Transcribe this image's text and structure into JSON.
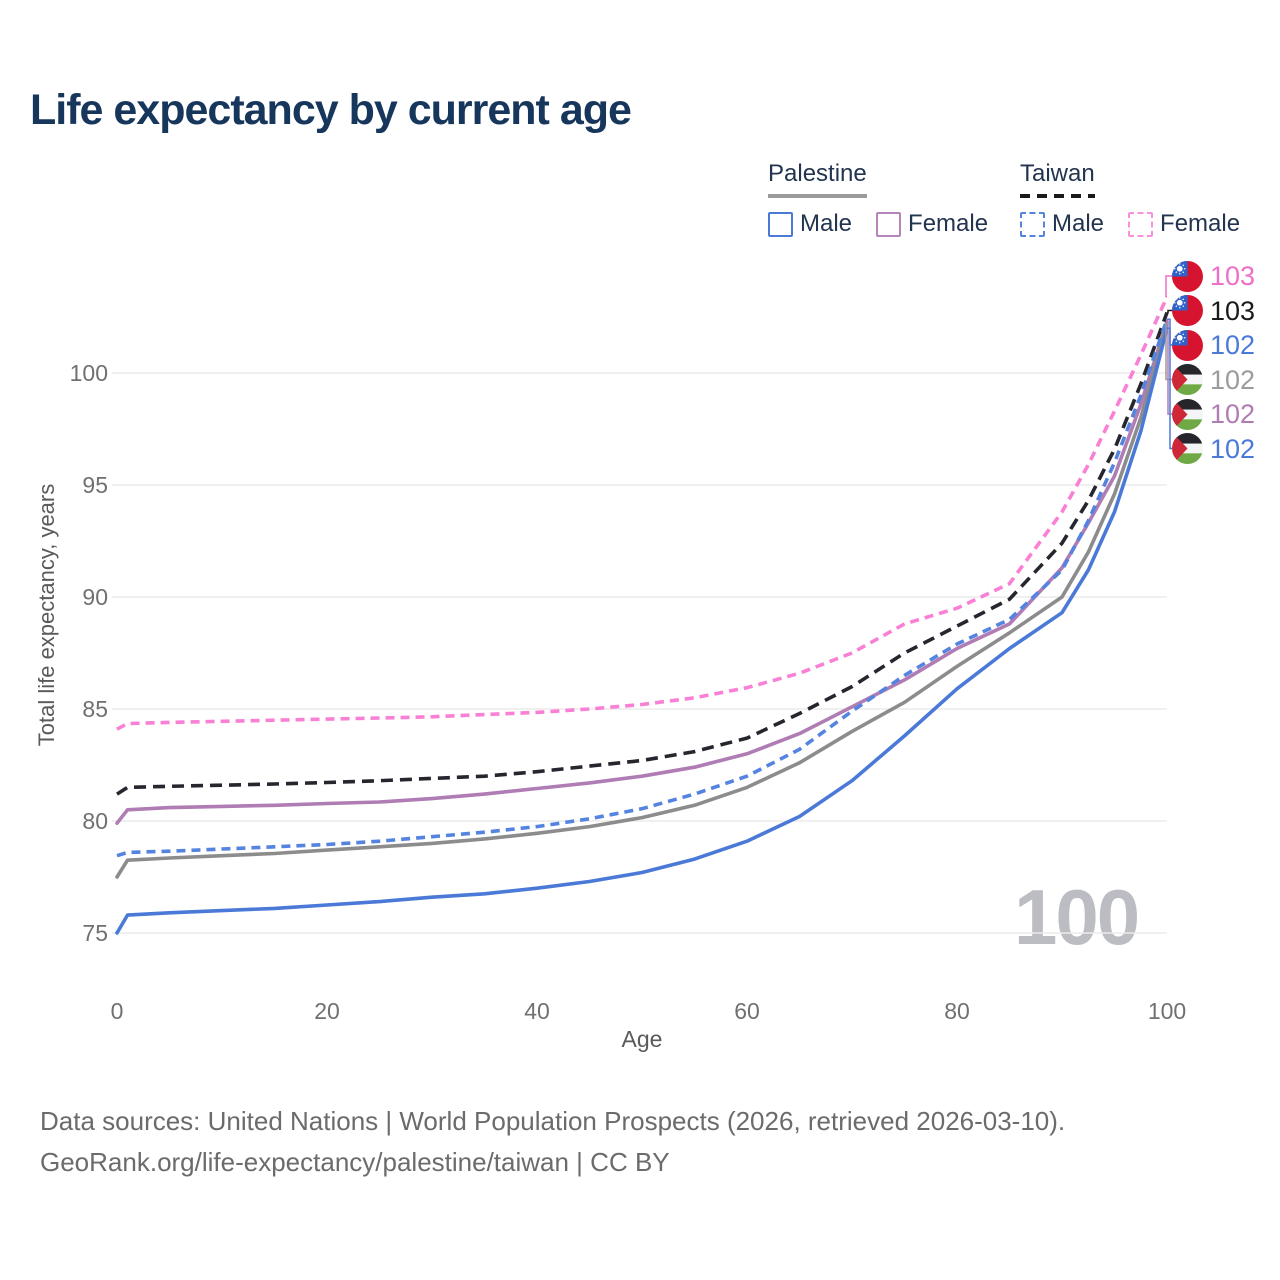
{
  "title": "Life expectancy by current age",
  "watermark": "100",
  "legend": {
    "groups": [
      {
        "label": "Palestine",
        "line_style": "solid",
        "underline_color": "#9b9b9b",
        "items": [
          {
            "label": "Male",
            "color": "#4a79d8",
            "dashed": false
          },
          {
            "label": "Female",
            "color": "#b584b8",
            "dashed": false
          }
        ]
      },
      {
        "label": "Taiwan",
        "line_style": "dashed",
        "underline_color": "#1a1a1a",
        "items": [
          {
            "label": "Male",
            "color": "#5584e0",
            "dashed": true
          },
          {
            "label": "Female",
            "color": "#f890dc",
            "dashed": true
          }
        ]
      }
    ]
  },
  "chart_data": {
    "type": "line",
    "title": "Life expectancy by current age",
    "xlabel": "Age",
    "ylabel": "Total life expectancy, years",
    "xlim": [
      0,
      100
    ],
    "ylim": [
      73.5,
      104.5
    ],
    "xticks": [
      0,
      20,
      40,
      60,
      80,
      100
    ],
    "yticks": [
      75,
      80,
      85,
      90,
      95,
      100
    ],
    "grid": "horizontal",
    "gridline_color": "#ebebeb",
    "x": [
      0,
      1,
      5,
      10,
      15,
      20,
      25,
      30,
      35,
      40,
      45,
      50,
      55,
      60,
      65,
      70,
      75,
      80,
      85,
      90,
      92.5,
      95,
      97.5,
      100
    ],
    "series": [
      {
        "name": "Palestine Female",
        "country": "Palestine",
        "sex": "Female",
        "color": "#b07cb4",
        "dash": "solid",
        "end_label": "102",
        "values": [
          79.9,
          80.5,
          80.6,
          80.65,
          80.7,
          80.78,
          80.85,
          81.0,
          81.2,
          81.45,
          81.7,
          82.0,
          82.4,
          83.0,
          83.9,
          85.1,
          86.3,
          87.7,
          88.8,
          91.3,
          93.3,
          95.4,
          98.6,
          102.3
        ]
      },
      {
        "name": "Palestine",
        "country": "Palestine",
        "sex": "Both",
        "color": "#8c8c8c",
        "dash": "solid",
        "end_label": "102",
        "values": [
          77.5,
          78.25,
          78.35,
          78.45,
          78.55,
          78.7,
          78.85,
          79.0,
          79.2,
          79.45,
          79.75,
          80.15,
          80.7,
          81.5,
          82.6,
          84.0,
          85.3,
          86.9,
          88.4,
          90.0,
          92.0,
          94.6,
          98.0,
          102.2
        ]
      },
      {
        "name": "Palestine Male",
        "country": "Palestine",
        "sex": "Male",
        "color": "#4a79d8",
        "dash": "solid",
        "end_label": "102",
        "values": [
          75.0,
          75.8,
          75.9,
          76.0,
          76.1,
          76.25,
          76.4,
          76.6,
          76.75,
          77.0,
          77.3,
          77.7,
          78.3,
          79.1,
          80.2,
          81.8,
          83.8,
          85.9,
          87.7,
          89.3,
          91.2,
          93.8,
          97.4,
          102.0
        ]
      },
      {
        "name": "Taiwan",
        "country": "Taiwan",
        "sex": "Both",
        "color": "#26262e",
        "dash": "dashed",
        "end_label": "103",
        "values": [
          81.2,
          81.5,
          81.55,
          81.6,
          81.65,
          81.72,
          81.8,
          81.9,
          82.0,
          82.2,
          82.45,
          82.7,
          83.1,
          83.7,
          84.8,
          86.0,
          87.5,
          88.7,
          89.9,
          92.4,
          94.3,
          96.6,
          99.5,
          102.7
        ]
      },
      {
        "name": "Taiwan Female",
        "country": "Taiwan",
        "sex": "Female",
        "color": "#f980d4",
        "dash": "dashed",
        "end_label": "103",
        "values": [
          84.1,
          84.35,
          84.4,
          84.45,
          84.5,
          84.55,
          84.6,
          84.65,
          84.75,
          84.85,
          85.0,
          85.2,
          85.5,
          85.95,
          86.6,
          87.5,
          88.8,
          89.5,
          90.6,
          93.8,
          95.9,
          98.3,
          100.8,
          103.4
        ]
      },
      {
        "name": "Taiwan Male",
        "country": "Taiwan",
        "sex": "Male",
        "color": "#5584e0",
        "dash": "dashed",
        "end_label": "102",
        "values": [
          78.45,
          78.6,
          78.65,
          78.75,
          78.85,
          78.95,
          79.1,
          79.3,
          79.5,
          79.75,
          80.1,
          80.55,
          81.2,
          82.0,
          83.2,
          84.9,
          86.5,
          87.9,
          89.0,
          91.2,
          93.4,
          96.0,
          99.0,
          102.4
        ]
      }
    ]
  },
  "end_labels": [
    {
      "flag": "taiwan",
      "value": "103",
      "color": "#ee6fc8",
      "series": "Taiwan Female"
    },
    {
      "flag": "taiwan",
      "value": "103",
      "color": "#1a1a1a",
      "series": "Taiwan"
    },
    {
      "flag": "taiwan",
      "value": "102",
      "color": "#4b79d8",
      "series": "Taiwan Male"
    },
    {
      "flag": "palestine",
      "value": "102",
      "color": "#9b9b9b",
      "series": "Palestine"
    },
    {
      "flag": "palestine",
      "value": "102",
      "color": "#b07cb4",
      "series": "Palestine Female"
    },
    {
      "flag": "palestine",
      "value": "102",
      "color": "#4b79d8",
      "series": "Palestine Male"
    }
  ],
  "footer": {
    "line1": "Data sources: United Nations | World Population Prospects (2026, retrieved 2026-03-10).",
    "line2": "GeoRank.org/life-expectancy/palestine/taiwan | CC BY"
  }
}
